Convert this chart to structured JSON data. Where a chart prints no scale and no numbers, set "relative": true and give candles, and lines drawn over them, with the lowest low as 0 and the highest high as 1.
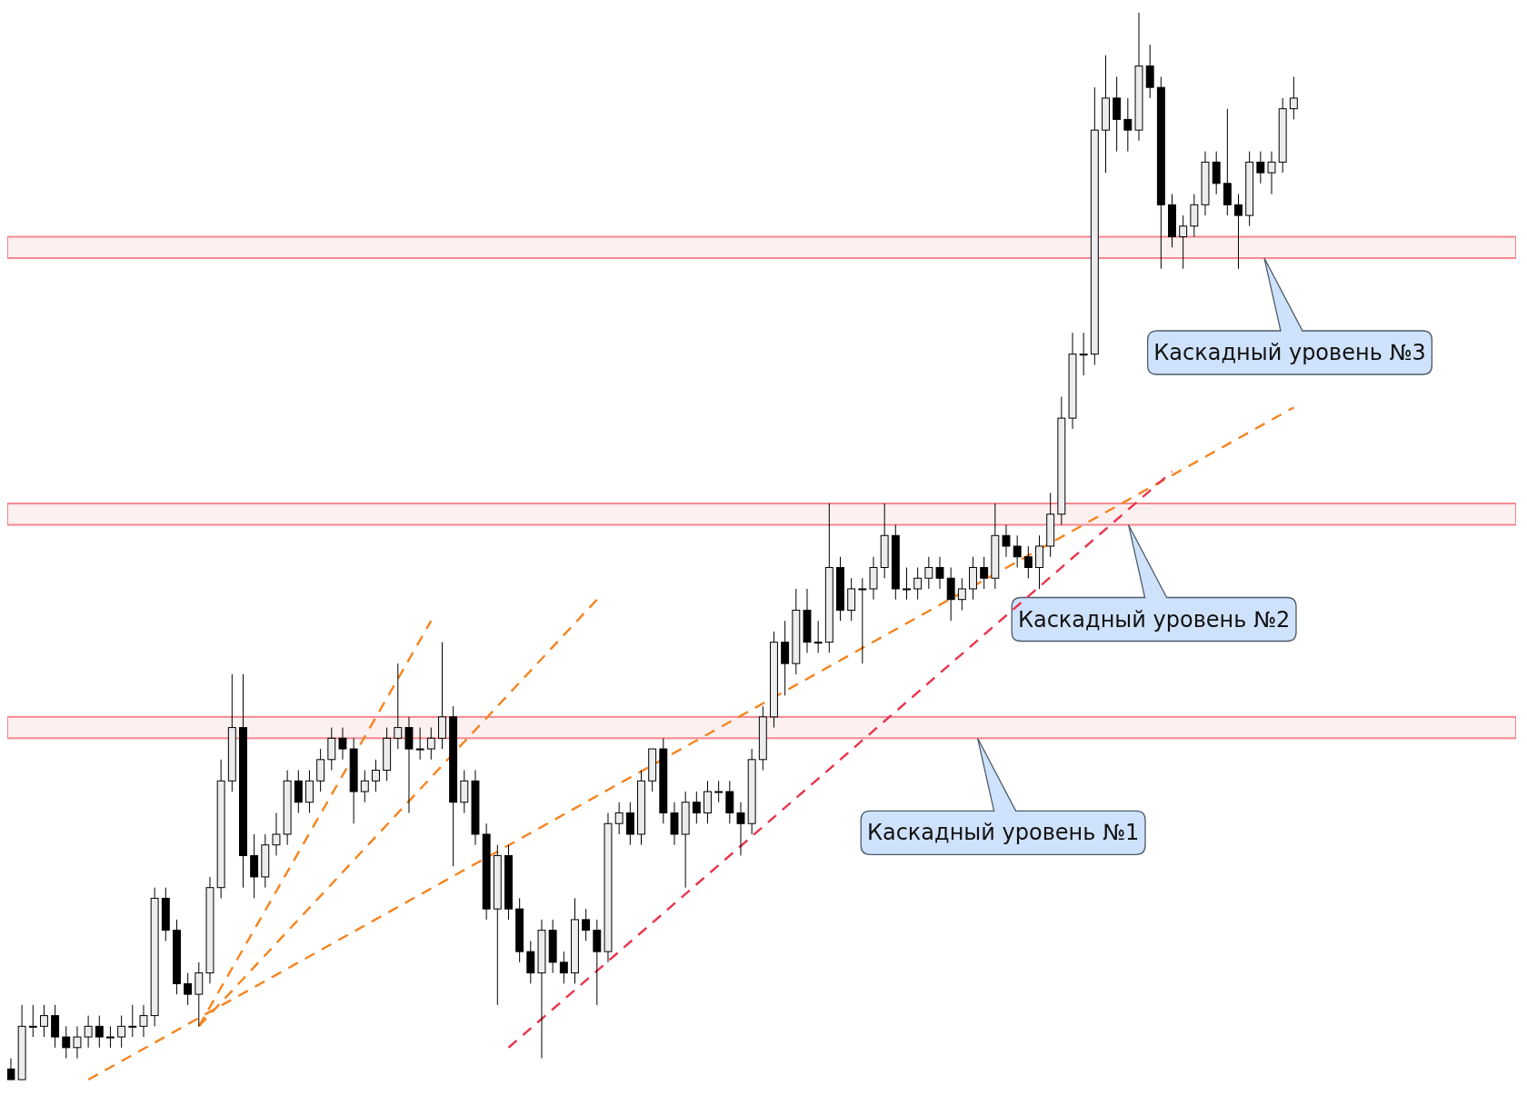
{
  "chart_data": {
    "type": "candlestick",
    "relative": true,
    "categories": [
      null,
      null,
      null,
      null,
      null,
      null,
      null,
      null,
      null,
      null,
      null,
      null,
      null,
      null,
      null,
      null,
      null,
      null,
      null,
      null,
      null,
      null,
      null,
      null,
      null,
      null,
      null,
      null,
      null,
      null,
      null,
      null,
      null,
      null,
      null,
      null,
      null,
      null,
      null,
      null,
      null,
      null,
      null,
      null,
      null,
      null,
      null,
      null,
      null,
      null,
      null,
      null,
      null,
      null,
      null,
      null,
      null,
      null,
      null,
      null,
      null,
      null,
      null,
      null,
      null,
      null,
      null,
      null,
      null,
      null,
      null,
      null,
      null,
      null,
      null,
      null,
      null,
      null,
      null,
      null,
      null,
      null,
      null,
      null,
      null,
      null,
      null,
      null,
      null,
      null,
      null,
      null,
      null,
      null,
      null,
      null,
      null,
      null,
      null,
      null,
      null,
      null,
      null,
      null,
      null,
      null,
      null,
      null,
      null,
      null,
      null,
      null,
      null,
      null,
      null,
      null,
      null
    ],
    "ohlc": [
      [
        0.01,
        0.02,
        0.0,
        0.0
      ],
      [
        0.0,
        0.07,
        0.0,
        0.05
      ],
      [
        0.05,
        0.07,
        0.04,
        0.05
      ],
      [
        0.05,
        0.07,
        0.04,
        0.06
      ],
      [
        0.06,
        0.07,
        0.03,
        0.04
      ],
      [
        0.04,
        0.05,
        0.02,
        0.03
      ],
      [
        0.03,
        0.05,
        0.02,
        0.04
      ],
      [
        0.04,
        0.06,
        0.03,
        0.05
      ],
      [
        0.05,
        0.06,
        0.03,
        0.04
      ],
      [
        0.04,
        0.05,
        0.03,
        0.04
      ],
      [
        0.04,
        0.06,
        0.03,
        0.05
      ],
      [
        0.05,
        0.07,
        0.04,
        0.05
      ],
      [
        0.05,
        0.07,
        0.04,
        0.06
      ],
      [
        0.06,
        0.18,
        0.05,
        0.17
      ],
      [
        0.17,
        0.18,
        0.13,
        0.14
      ],
      [
        0.14,
        0.15,
        0.08,
        0.09
      ],
      [
        0.09,
        0.1,
        0.07,
        0.08
      ],
      [
        0.08,
        0.11,
        0.05,
        0.1
      ],
      [
        0.1,
        0.19,
        0.09,
        0.18
      ],
      [
        0.18,
        0.3,
        0.17,
        0.28
      ],
      [
        0.28,
        0.38,
        0.27,
        0.33
      ],
      [
        0.33,
        0.38,
        0.18,
        0.21
      ],
      [
        0.21,
        0.23,
        0.17,
        0.19
      ],
      [
        0.19,
        0.23,
        0.18,
        0.22
      ],
      [
        0.22,
        0.25,
        0.21,
        0.23
      ],
      [
        0.23,
        0.29,
        0.22,
        0.28
      ],
      [
        0.28,
        0.29,
        0.25,
        0.26
      ],
      [
        0.26,
        0.29,
        0.25,
        0.28
      ],
      [
        0.28,
        0.31,
        0.27,
        0.3
      ],
      [
        0.3,
        0.33,
        0.29,
        0.32
      ],
      [
        0.32,
        0.33,
        0.3,
        0.31
      ],
      [
        0.31,
        0.32,
        0.24,
        0.27
      ],
      [
        0.27,
        0.29,
        0.26,
        0.28
      ],
      [
        0.28,
        0.3,
        0.27,
        0.29
      ],
      [
        0.29,
        0.33,
        0.28,
        0.32
      ],
      [
        0.32,
        0.39,
        0.31,
        0.33
      ],
      [
        0.33,
        0.34,
        0.25,
        0.31
      ],
      [
        0.31,
        0.33,
        0.3,
        0.31
      ],
      [
        0.31,
        0.33,
        0.3,
        0.32
      ],
      [
        0.32,
        0.41,
        0.31,
        0.34
      ],
      [
        0.34,
        0.35,
        0.2,
        0.26
      ],
      [
        0.26,
        0.29,
        0.25,
        0.28
      ],
      [
        0.28,
        0.29,
        0.22,
        0.23
      ],
      [
        0.23,
        0.24,
        0.15,
        0.16
      ],
      [
        0.16,
        0.22,
        0.07,
        0.21
      ],
      [
        0.21,
        0.22,
        0.15,
        0.16
      ],
      [
        0.16,
        0.17,
        0.11,
        0.12
      ],
      [
        0.12,
        0.13,
        0.09,
        0.1
      ],
      [
        0.1,
        0.15,
        0.02,
        0.14
      ],
      [
        0.14,
        0.15,
        0.1,
        0.11
      ],
      [
        0.11,
        0.12,
        0.09,
        0.1
      ],
      [
        0.1,
        0.17,
        0.09,
        0.15
      ],
      [
        0.15,
        0.16,
        0.13,
        0.14
      ],
      [
        0.14,
        0.15,
        0.07,
        0.12
      ],
      [
        0.12,
        0.25,
        0.11,
        0.24
      ],
      [
        0.24,
        0.26,
        0.23,
        0.25
      ],
      [
        0.25,
        0.26,
        0.22,
        0.23
      ],
      [
        0.23,
        0.29,
        0.22,
        0.28
      ],
      [
        0.28,
        0.31,
        0.27,
        0.31
      ],
      [
        0.31,
        0.32,
        0.24,
        0.25
      ],
      [
        0.25,
        0.26,
        0.22,
        0.23
      ],
      [
        0.23,
        0.27,
        0.18,
        0.26
      ],
      [
        0.26,
        0.27,
        0.24,
        0.25
      ],
      [
        0.25,
        0.28,
        0.24,
        0.27
      ],
      [
        0.27,
        0.28,
        0.26,
        0.27
      ],
      [
        0.27,
        0.28,
        0.24,
        0.25
      ],
      [
        0.25,
        0.26,
        0.21,
        0.24
      ],
      [
        0.24,
        0.31,
        0.23,
        0.3
      ],
      [
        0.3,
        0.35,
        0.29,
        0.34
      ],
      [
        0.34,
        0.42,
        0.33,
        0.41
      ],
      [
        0.41,
        0.43,
        0.36,
        0.39
      ],
      [
        0.39,
        0.46,
        0.38,
        0.44
      ],
      [
        0.44,
        0.46,
        0.4,
        0.41
      ],
      [
        0.41,
        0.43,
        0.4,
        0.41
      ],
      [
        0.41,
        0.54,
        0.4,
        0.48
      ],
      [
        0.48,
        0.49,
        0.43,
        0.44
      ],
      [
        0.44,
        0.47,
        0.43,
        0.46
      ],
      [
        0.46,
        0.47,
        0.39,
        0.46
      ],
      [
        0.46,
        0.49,
        0.45,
        0.48
      ],
      [
        0.48,
        0.54,
        0.47,
        0.51
      ],
      [
        0.51,
        0.52,
        0.45,
        0.46
      ],
      [
        0.46,
        0.48,
        0.45,
        0.46
      ],
      [
        0.46,
        0.48,
        0.45,
        0.47
      ],
      [
        0.47,
        0.49,
        0.46,
        0.48
      ],
      [
        0.48,
        0.49,
        0.46,
        0.47
      ],
      [
        0.47,
        0.48,
        0.43,
        0.45
      ],
      [
        0.45,
        0.47,
        0.44,
        0.46
      ],
      [
        0.46,
        0.49,
        0.45,
        0.48
      ],
      [
        0.48,
        0.49,
        0.46,
        0.47
      ],
      [
        0.47,
        0.54,
        0.46,
        0.51
      ],
      [
        0.51,
        0.52,
        0.49,
        0.5
      ],
      [
        0.5,
        0.51,
        0.48,
        0.49
      ],
      [
        0.49,
        0.5,
        0.47,
        0.48
      ],
      [
        0.48,
        0.51,
        0.46,
        0.5
      ],
      [
        0.5,
        0.55,
        0.49,
        0.53
      ],
      [
        0.53,
        0.64,
        0.52,
        0.62
      ],
      [
        0.62,
        0.7,
        0.61,
        0.68
      ],
      [
        0.68,
        0.7,
        0.66,
        0.68
      ],
      [
        0.68,
        0.93,
        0.67,
        0.89
      ],
      [
        0.89,
        0.96,
        0.85,
        0.92
      ],
      [
        0.92,
        0.94,
        0.87,
        0.9
      ],
      [
        0.9,
        0.92,
        0.87,
        0.89
      ],
      [
        0.89,
        1.0,
        0.88,
        0.95
      ],
      [
        0.95,
        0.97,
        0.92,
        0.93
      ],
      [
        0.93,
        0.94,
        0.76,
        0.82
      ],
      [
        0.82,
        0.83,
        0.78,
        0.79
      ],
      [
        0.79,
        0.81,
        0.76,
        0.8
      ],
      [
        0.8,
        0.83,
        0.79,
        0.82
      ],
      [
        0.82,
        0.87,
        0.81,
        0.86
      ],
      [
        0.86,
        0.87,
        0.83,
        0.84
      ],
      [
        0.84,
        0.91,
        0.81,
        0.82
      ],
      [
        0.82,
        0.83,
        0.76,
        0.81
      ],
      [
        0.81,
        0.87,
        0.8,
        0.86
      ],
      [
        0.86,
        0.87,
        0.84,
        0.85
      ],
      [
        0.85,
        0.87,
        0.83,
        0.86
      ],
      [
        0.86,
        0.92,
        0.85,
        0.91
      ],
      [
        0.91,
        0.94,
        0.9,
        0.92
      ]
    ],
    "series": [
      {
        "type": "line",
        "color": "#f5841f",
        "line_style": "dashed",
        "values": [
          null,
          null,
          null,
          null,
          null,
          null,
          null,
          0.0,
          null,
          null,
          null,
          null,
          null,
          null,
          null,
          null,
          null,
          null,
          null,
          null,
          null,
          null,
          null,
          null,
          null,
          null,
          null,
          null,
          null,
          null,
          null,
          null,
          null,
          null,
          null,
          null,
          null,
          null,
          null,
          null,
          null,
          null,
          null,
          null,
          null,
          null,
          null,
          null,
          null,
          null,
          null,
          null,
          null,
          null,
          null,
          null,
          null,
          null,
          null,
          null,
          null,
          null,
          null,
          null,
          null,
          null,
          null,
          null,
          null,
          null,
          null,
          null,
          null,
          null,
          null,
          null,
          null,
          null,
          null,
          null,
          null,
          null,
          null,
          null,
          null,
          null,
          null,
          null,
          null,
          null,
          null,
          null,
          null,
          null,
          null,
          null,
          null,
          null,
          null,
          null,
          null,
          null,
          null,
          null,
          null,
          null,
          null,
          null,
          null,
          null,
          null,
          null,
          null,
          null,
          null,
          null,
          0.63
        ]
      },
      {
        "type": "line",
        "color": "#f5841f",
        "line_style": "dashed",
        "values": [
          null,
          null,
          null,
          null,
          null,
          null,
          null,
          null,
          null,
          null,
          null,
          null,
          null,
          null,
          null,
          null,
          null,
          0.05,
          null,
          null,
          null,
          null,
          null,
          null,
          null,
          null,
          null,
          null,
          null,
          null,
          null,
          null,
          null,
          null,
          null,
          null,
          null,
          null,
          null,
          null,
          null,
          null,
          null,
          null,
          null,
          null,
          null,
          null,
          null,
          null,
          null,
          null,
          null,
          0.45,
          null,
          null,
          null,
          null,
          null,
          null,
          null,
          null,
          null,
          null,
          null,
          null,
          null,
          null,
          null,
          null,
          null,
          null,
          null,
          null,
          null,
          null,
          null,
          null,
          null,
          null,
          null,
          null,
          null,
          null,
          null,
          null,
          null,
          null,
          null,
          null,
          null,
          null,
          null,
          null,
          null,
          null,
          null,
          null,
          null,
          null,
          null,
          null,
          null,
          null,
          null,
          null,
          null,
          null,
          null,
          null,
          null,
          null,
          null,
          null,
          null,
          null,
          null
        ]
      },
      {
        "type": "line",
        "color": "#f5841f",
        "line_style": "dashed",
        "values": [
          null,
          null,
          null,
          null,
          null,
          null,
          null,
          null,
          null,
          null,
          null,
          null,
          null,
          null,
          null,
          null,
          null,
          0.05,
          null,
          null,
          null,
          null,
          null,
          null,
          null,
          null,
          null,
          null,
          null,
          null,
          null,
          null,
          null,
          null,
          null,
          null,
          null,
          null,
          0.43,
          null,
          null,
          null,
          null,
          null,
          null,
          null,
          null,
          null,
          null,
          null,
          null,
          null,
          null,
          null,
          null,
          null,
          null,
          null,
          null,
          null,
          null,
          null,
          null,
          null,
          null,
          null,
          null,
          null,
          null,
          null,
          null,
          null,
          null,
          null,
          null,
          null,
          null,
          null,
          null,
          null,
          null,
          null,
          null,
          null,
          null,
          null,
          null,
          null,
          null,
          null,
          null,
          null,
          null,
          null,
          null,
          null,
          null,
          null,
          null,
          null,
          null,
          null,
          null,
          null,
          null,
          null,
          null,
          null,
          null,
          null,
          null,
          null,
          null,
          null,
          null,
          null,
          null
        ]
      },
      {
        "type": "line",
        "color": "#e8344c",
        "line_style": "dashed",
        "values": [
          null,
          null,
          null,
          null,
          null,
          null,
          null,
          null,
          null,
          null,
          null,
          null,
          null,
          null,
          null,
          null,
          null,
          null,
          null,
          null,
          null,
          null,
          null,
          null,
          null,
          null,
          null,
          null,
          null,
          null,
          null,
          null,
          null,
          null,
          null,
          null,
          null,
          null,
          null,
          null,
          null,
          null,
          null,
          null,
          null,
          0.03,
          null,
          null,
          null,
          null,
          null,
          null,
          null,
          null,
          null,
          null,
          null,
          null,
          null,
          null,
          null,
          null,
          null,
          null,
          null,
          null,
          null,
          null,
          null,
          null,
          null,
          null,
          null,
          null,
          null,
          null,
          null,
          null,
          null,
          null,
          null,
          null,
          null,
          null,
          null,
          null,
          null,
          null,
          null,
          null,
          null,
          null,
          null,
          null,
          null,
          null,
          null,
          null,
          null,
          null,
          null,
          null,
          null,
          null,
          null,
          0.57,
          null,
          null,
          null,
          null,
          null,
          null,
          null,
          null,
          null,
          null,
          null
        ]
      }
    ],
    "bands": [
      {
        "axis": "y",
        "from": 0.32,
        "to": 0.34,
        "color": "#f4888e"
      },
      {
        "axis": "y",
        "from": 0.52,
        "to": 0.54,
        "color": "#f4888e"
      },
      {
        "axis": "y",
        "from": 0.77,
        "to": 0.79,
        "color": "#f4888e"
      }
    ],
    "annotations": [
      "Каскадный уровень №1",
      "Каскадный уровень №2",
      "Каскадный уровень №3"
    ]
  }
}
